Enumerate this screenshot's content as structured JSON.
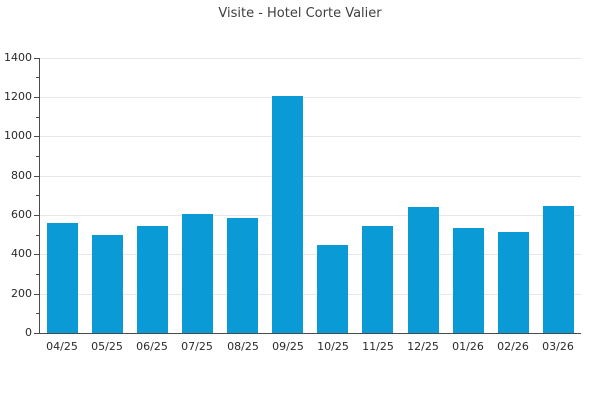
{
  "chart_data": {
    "type": "bar",
    "title": "Visite - Hotel Corte Valier",
    "categories": [
      "04/25",
      "05/25",
      "06/25",
      "07/25",
      "08/25",
      "09/25",
      "10/25",
      "11/25",
      "12/25",
      "01/26",
      "02/26",
      "03/26"
    ],
    "values": [
      560,
      500,
      545,
      605,
      585,
      1205,
      450,
      545,
      640,
      535,
      515,
      645
    ],
    "xlabel": "",
    "ylabel": "",
    "ylim": [
      0,
      1400
    ],
    "ytick_interval": 200,
    "ytick_minor_interval": 100,
    "ytick_labels": [
      "0",
      "200",
      "400",
      "600",
      "800",
      "1000",
      "1200",
      "1400"
    ],
    "grid": "horizontal",
    "legend": "none",
    "colors": {
      "bar": "#0a9bd6",
      "grid": "#e7e7e7",
      "axis": "#4a4a4a",
      "tick_text": "#2a2a2a",
      "title_text": "#3f3f3f",
      "background": "#ffffff"
    }
  }
}
